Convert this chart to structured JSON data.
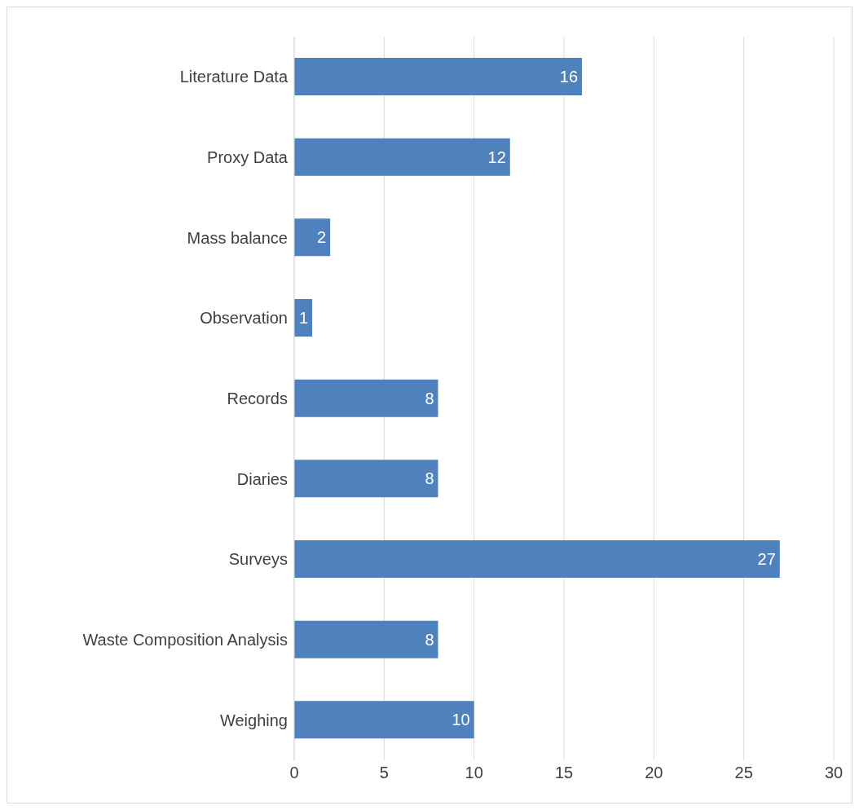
{
  "chart_data": {
    "type": "bar",
    "orientation": "horizontal",
    "categories": [
      "Literature Data",
      "Proxy Data",
      "Mass balance",
      "Observation",
      "Records",
      "Diaries",
      "Surveys",
      "Waste Composition Analysis",
      "Weighing"
    ],
    "values": [
      16,
      12,
      2,
      1,
      8,
      8,
      27,
      8,
      10
    ],
    "color": "#4f81bd",
    "xlim": [
      0,
      30
    ],
    "xticks": [
      0,
      5,
      10,
      15,
      20,
      25,
      30
    ],
    "grid": "x",
    "data_labels": true,
    "legend": false
  }
}
